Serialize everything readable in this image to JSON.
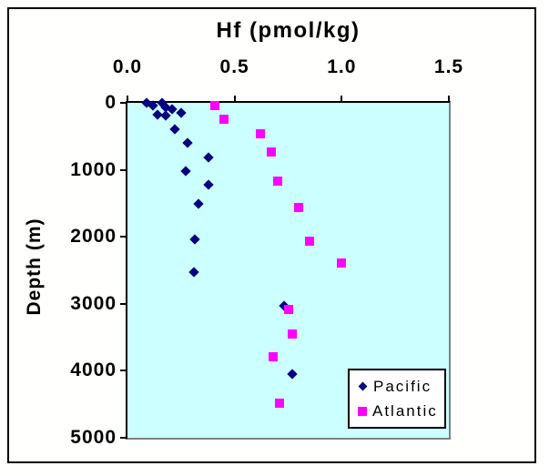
{
  "chart_data": {
    "type": "scatter",
    "title": "Hf (pmol/kg)",
    "xlabel": "Hf (pmol/kg)",
    "ylabel": "Depth (m)",
    "xlim": [
      0,
      1.5
    ],
    "ylim": [
      0,
      5000
    ],
    "x_axis_position": "top",
    "y_axis_inverted": true,
    "grid": false,
    "plot_bg_color": "#CCFFFF",
    "axis_color": "#000000",
    "plot_border_shadow_color": "#808080",
    "legend_position": "bottom-right",
    "x_ticks": [
      {
        "value": 0.0,
        "label": "0.0"
      },
      {
        "value": 0.5,
        "label": "0.5"
      },
      {
        "value": 1.0,
        "label": "1.0"
      },
      {
        "value": 1.5,
        "label": "1.5"
      }
    ],
    "y_ticks": [
      {
        "value": 0,
        "label": "0"
      },
      {
        "value": 1000,
        "label": "1000"
      },
      {
        "value": 2000,
        "label": "2000"
      },
      {
        "value": 3000,
        "label": "3000"
      },
      {
        "value": 4000,
        "label": "4000"
      },
      {
        "value": 5000,
        "label": "5000"
      }
    ],
    "series": [
      {
        "name": "Pacific",
        "marker": "diamond",
        "color": "#000080",
        "points": [
          [
            0.09,
            5
          ],
          [
            0.12,
            40
          ],
          [
            0.16,
            5
          ],
          [
            0.14,
            170
          ],
          [
            0.18,
            70
          ],
          [
            0.21,
            90
          ],
          [
            0.25,
            150
          ],
          [
            0.18,
            190
          ],
          [
            0.22,
            400
          ],
          [
            0.28,
            600
          ],
          [
            0.38,
            810
          ],
          [
            0.27,
            1020
          ],
          [
            0.38,
            1220
          ],
          [
            0.33,
            1510
          ],
          [
            0.315,
            2040
          ],
          [
            0.31,
            2530
          ],
          [
            0.73,
            3030
          ],
          [
            0.77,
            4050
          ]
        ]
      },
      {
        "name": "Atlantic",
        "marker": "square",
        "color": "#FF00FF",
        "points": [
          [
            0.41,
            40
          ],
          [
            0.45,
            250
          ],
          [
            0.62,
            460
          ],
          [
            0.67,
            740
          ],
          [
            0.7,
            1170
          ],
          [
            0.8,
            1560
          ],
          [
            0.85,
            2060
          ],
          [
            1.0,
            2390
          ],
          [
            0.75,
            3090
          ],
          [
            0.77,
            3450
          ],
          [
            0.68,
            3790
          ],
          [
            0.71,
            4480
          ]
        ]
      }
    ]
  }
}
